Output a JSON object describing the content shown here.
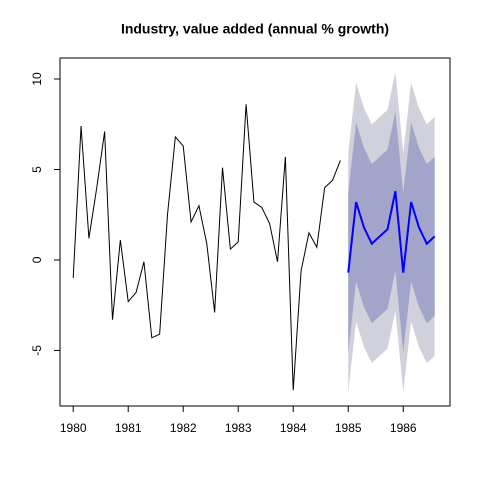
{
  "chart_data": {
    "type": "line",
    "title": "Industry, value added (annual % growth)",
    "x": [
      1980,
      1980.1429,
      1980.2857,
      1980.4286,
      1980.5714,
      1980.7143,
      1980.8571,
      1981,
      1981.1429,
      1981.2857,
      1981.4286,
      1981.5714,
      1981.7143,
      1981.8571,
      1982,
      1982.1429,
      1982.2857,
      1982.4286,
      1982.5714,
      1982.7143,
      1982.8571,
      1983,
      1983.1429,
      1983.2857,
      1983.4286,
      1983.5714,
      1983.7143,
      1983.8571,
      1984,
      1984.1429,
      1984.2857,
      1984.4286,
      1984.5714,
      1984.7143,
      1984.8571
    ],
    "values": [
      -1.0,
      7.4,
      1.2,
      4.0,
      7.1,
      -3.3,
      1.1,
      -2.3,
      -1.8,
      -0.1,
      -4.3,
      -4.1,
      2.5,
      6.8,
      6.3,
      2.1,
      3.0,
      0.9,
      -2.9,
      5.1,
      0.6,
      1.0,
      8.6,
      3.2,
      2.9,
      2.0,
      -0.1,
      5.7,
      -7.2,
      -0.6,
      1.5,
      0.7,
      4.0,
      4.4,
      5.5
    ],
    "color": "#000000",
    "forecast": {
      "color": "#0000ff",
      "x": [
        1985,
        1985.1429,
        1985.2857,
        1985.4286,
        1985.5714,
        1985.7143,
        1985.8571,
        1986,
        1986.1429,
        1986.2857,
        1986.4286,
        1986.5714
      ],
      "values": [
        -0.7,
        3.2,
        1.8,
        0.9,
        1.3,
        1.7,
        3.8,
        -0.7,
        3.2,
        1.8,
        0.9,
        1.3
      ]
    },
    "bands": [
      {
        "color": "#d1d1dc",
        "lower": [
          -7.3,
          -3.4,
          -4.8,
          -5.7,
          -5.3,
          -4.9,
          -2.8,
          -7.3,
          -3.4,
          -4.8,
          -5.7,
          -5.3
        ],
        "upper": [
          5.9,
          9.8,
          8.4,
          7.5,
          7.9,
          8.3,
          10.4,
          5.9,
          9.8,
          8.4,
          7.5,
          7.9
        ]
      },
      {
        "color": "#a2a5c9",
        "lower": [
          -5.1,
          -1.2,
          -2.6,
          -3.5,
          -3.1,
          -2.7,
          -0.6,
          -5.1,
          -1.2,
          -2.6,
          -3.5,
          -3.1
        ],
        "upper": [
          3.7,
          7.6,
          6.2,
          5.3,
          5.7,
          6.1,
          8.2,
          3.7,
          7.6,
          6.2,
          5.3,
          5.7
        ]
      }
    ],
    "xlim": [
      1979.76,
      1986.85
    ],
    "xticks": [
      1980,
      1981,
      1982,
      1983,
      1984,
      1985,
      1986
    ],
    "ylim": [
      -8.07,
      11.16
    ],
    "yticks": [
      -5,
      0,
      5,
      10
    ]
  }
}
